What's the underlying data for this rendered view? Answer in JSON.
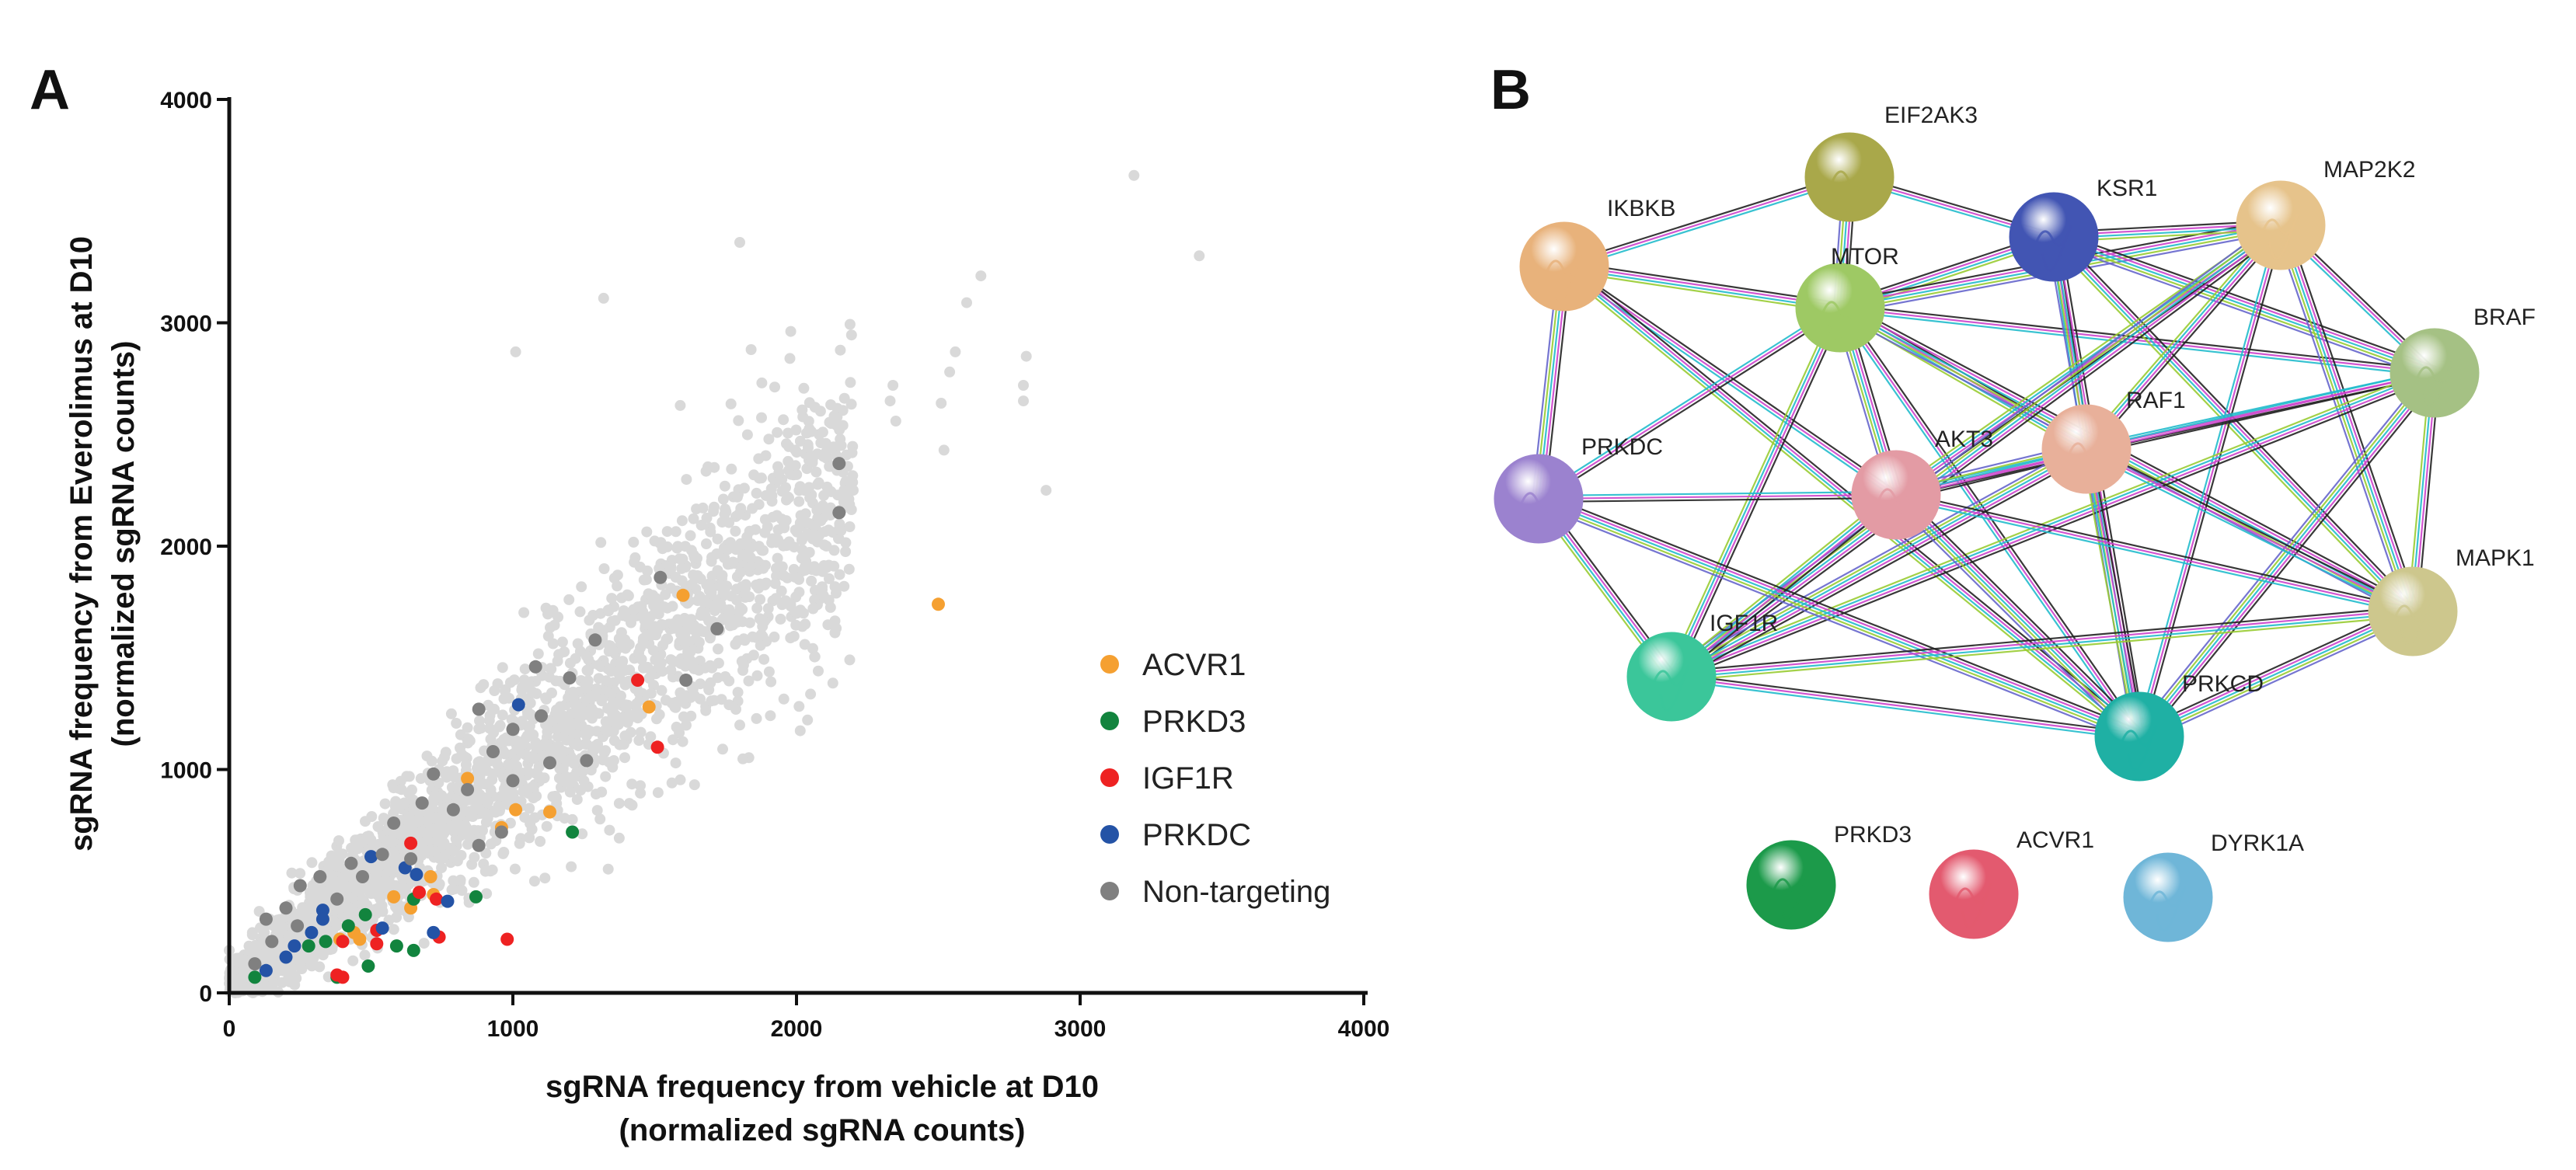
{
  "panel_a_letter": "A",
  "panel_b_letter": "B",
  "chart_data": [
    {
      "type": "scatter",
      "title": "",
      "xlabel_line1": "sgRNA frequency from vehicle at D10",
      "xlabel_line2": "(normalized sgRNA counts)",
      "ylabel_line1": "sgRNA frequency from Everolimus at D10",
      "ylabel_line2": "(normalized sgRNA counts)",
      "xlim": [
        0,
        4000
      ],
      "ylim": [
        0,
        4000
      ],
      "xticks": [
        "0",
        "1000",
        "2000",
        "3000",
        "4000"
      ],
      "yticks": [
        "0",
        "1000",
        "2000",
        "3000",
        "4000"
      ],
      "legend_position": "center-right",
      "background_color": "#d9d9d9",
      "series": [
        {
          "name": "ACVR1",
          "color": "#f5a031",
          "points": [
            [
              1600,
              1780
            ],
            [
              2500,
              1740
            ],
            [
              1480,
              1280
            ],
            [
              840,
              960
            ],
            [
              1010,
              820
            ],
            [
              1130,
              810
            ],
            [
              960,
              740
            ],
            [
              710,
              520
            ],
            [
              720,
              440
            ],
            [
              580,
              430
            ],
            [
              640,
              380
            ],
            [
              440,
              270
            ],
            [
              460,
              240
            ],
            [
              390,
              240
            ]
          ]
        },
        {
          "name": "PRKD3",
          "color": "#12843e",
          "points": [
            [
              1210,
              720
            ],
            [
              870,
              430
            ],
            [
              650,
              420
            ],
            [
              480,
              350
            ],
            [
              420,
              300
            ],
            [
              340,
              230
            ],
            [
              280,
              210
            ],
            [
              590,
              210
            ],
            [
              650,
              190
            ],
            [
              490,
              120
            ],
            [
              380,
              70
            ],
            [
              90,
              70
            ]
          ]
        },
        {
          "name": "IGF1R",
          "color": "#ee2222",
          "points": [
            [
              1440,
              1400
            ],
            [
              1510,
              1100
            ],
            [
              640,
              670
            ],
            [
              670,
              450
            ],
            [
              730,
              420
            ],
            [
              520,
              280
            ],
            [
              520,
              220
            ],
            [
              740,
              250
            ],
            [
              400,
              230
            ],
            [
              980,
              240
            ],
            [
              380,
              80
            ],
            [
              400,
              70
            ]
          ]
        },
        {
          "name": "PRKDC",
          "color": "#2453a6",
          "points": [
            [
              1020,
              1290
            ],
            [
              500,
              610
            ],
            [
              620,
              560
            ],
            [
              660,
              530
            ],
            [
              330,
              370
            ],
            [
              330,
              330
            ],
            [
              770,
              410
            ],
            [
              540,
              290
            ],
            [
              720,
              270
            ],
            [
              290,
              270
            ],
            [
              230,
              210
            ],
            [
              200,
              160
            ],
            [
              130,
              100
            ]
          ]
        },
        {
          "name": "Non-targeting",
          "color": "#808080",
          "points": [
            [
              2150,
              2370
            ],
            [
              2150,
              2150
            ],
            [
              1520,
              1860
            ],
            [
              1720,
              1630
            ],
            [
              1290,
              1580
            ],
            [
              1080,
              1460
            ],
            [
              1200,
              1410
            ],
            [
              880,
              1270
            ],
            [
              1100,
              1240
            ],
            [
              1610,
              1400
            ],
            [
              1000,
              1180
            ],
            [
              930,
              1080
            ],
            [
              1130,
              1030
            ],
            [
              1260,
              1040
            ],
            [
              720,
              980
            ],
            [
              1000,
              950
            ],
            [
              840,
              910
            ],
            [
              680,
              850
            ],
            [
              790,
              820
            ],
            [
              580,
              760
            ],
            [
              960,
              720
            ],
            [
              880,
              660
            ],
            [
              640,
              600
            ],
            [
              430,
              580
            ],
            [
              540,
              620
            ],
            [
              320,
              520
            ],
            [
              250,
              480
            ],
            [
              470,
              520
            ],
            [
              380,
              420
            ],
            [
              200,
              380
            ],
            [
              130,
              330
            ],
            [
              240,
              300
            ],
            [
              150,
              230
            ],
            [
              90,
              130
            ]
          ]
        }
      ]
    }
  ],
  "network": {
    "nodes": [
      {
        "name": "EIF2AK3",
        "color": "#a9a84a"
      },
      {
        "name": "IKBKB",
        "color": "#e8b27b"
      },
      {
        "name": "MTOR",
        "color": "#9ec964"
      },
      {
        "name": "KSR1",
        "color": "#4255b3"
      },
      {
        "name": "MAP2K2",
        "color": "#e6c38b"
      },
      {
        "name": "BRAF",
        "color": "#a5c184"
      },
      {
        "name": "RAF1",
        "color": "#e8b09a"
      },
      {
        "name": "AKT3",
        "color": "#e39ba4"
      },
      {
        "name": "PRKDC",
        "color": "#9b82cf"
      },
      {
        "name": "MAPK1",
        "color": "#cdc78d"
      },
      {
        "name": "IGF1R",
        "color": "#3bc69a"
      },
      {
        "name": "PRKCD",
        "color": "#1fb0a4"
      },
      {
        "name": "PRKD3",
        "color": "#1c9a4a"
      },
      {
        "name": "ACVR1",
        "color": "#e35a6f"
      },
      {
        "name": "DYRK1A",
        "color": "#6fb6d8"
      }
    ],
    "edge_colors": [
      "#222222",
      "#cc44cc",
      "#22bbcc",
      "#99cc33",
      "#6666cc"
    ],
    "edges": [
      [
        "IKBKB",
        "EIF2AK3"
      ],
      [
        "IKBKB",
        "MTOR"
      ],
      [
        "IKBKB",
        "PRKDC"
      ],
      [
        "IKBKB",
        "AKT3"
      ],
      [
        "IKBKB",
        "PRKCD"
      ],
      [
        "EIF2AK3",
        "MTOR"
      ],
      [
        "EIF2AK3",
        "KSR1"
      ],
      [
        "MTOR",
        "KSR1"
      ],
      [
        "MTOR",
        "MAP2K2"
      ],
      [
        "MTOR",
        "BRAF"
      ],
      [
        "MTOR",
        "RAF1"
      ],
      [
        "MTOR",
        "AKT3"
      ],
      [
        "MTOR",
        "PRKDC"
      ],
      [
        "MTOR",
        "IGF1R"
      ],
      [
        "MTOR",
        "MAPK1"
      ],
      [
        "MTOR",
        "PRKCD"
      ],
      [
        "KSR1",
        "MAP2K2"
      ],
      [
        "KSR1",
        "BRAF"
      ],
      [
        "KSR1",
        "RAF1"
      ],
      [
        "KSR1",
        "MAPK1"
      ],
      [
        "KSR1",
        "PRKCD"
      ],
      [
        "MAP2K2",
        "BRAF"
      ],
      [
        "MAP2K2",
        "RAF1"
      ],
      [
        "MAP2K2",
        "MAPK1"
      ],
      [
        "MAP2K2",
        "PRKCD"
      ],
      [
        "MAP2K2",
        "AKT3"
      ],
      [
        "MAP2K2",
        "IGF1R"
      ],
      [
        "BRAF",
        "RAF1"
      ],
      [
        "BRAF",
        "MAPK1"
      ],
      [
        "BRAF",
        "PRKCD"
      ],
      [
        "BRAF",
        "AKT3"
      ],
      [
        "BRAF",
        "IGF1R"
      ],
      [
        "RAF1",
        "AKT3"
      ],
      [
        "RAF1",
        "MAPK1"
      ],
      [
        "RAF1",
        "PRKCD"
      ],
      [
        "RAF1",
        "IGF1R"
      ],
      [
        "AKT3",
        "PRKDC"
      ],
      [
        "AKT3",
        "IGF1R"
      ],
      [
        "AKT3",
        "PRKCD"
      ],
      [
        "AKT3",
        "MAPK1"
      ],
      [
        "PRKDC",
        "IGF1R"
      ],
      [
        "PRKDC",
        "PRKCD"
      ],
      [
        "IGF1R",
        "PRKCD"
      ],
      [
        "IGF1R",
        "MAPK1"
      ],
      [
        "PRKCD",
        "MAPK1"
      ]
    ]
  }
}
